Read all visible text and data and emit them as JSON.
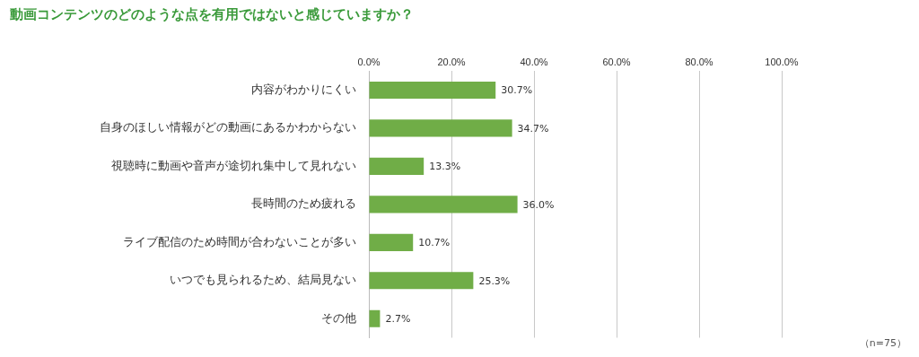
{
  "chart_data": {
    "type": "bar",
    "orientation": "horizontal",
    "title": "動画コンテンツのどのような点を有用ではないと感じていますか？",
    "categories": [
      "内容がわかりにくい",
      "自身のほしい情報がどの動画にあるかわからない",
      "視聴時に動画や音声が途切れ集中して見れない",
      "長時間のため疲れる",
      "ライブ配信のため時間が合わないことが多い",
      "いつでも見られるため、結局見ない",
      "その他"
    ],
    "values": [
      30.7,
      34.7,
      13.3,
      36.0,
      10.7,
      25.3,
      2.7
    ],
    "value_labels": [
      "30.7%",
      "34.7%",
      "13.3%",
      "36.0%",
      "10.7%",
      "25.3%",
      "2.7%"
    ],
    "color": "#70ad47",
    "xlim": [
      0,
      100
    ],
    "xticks": [
      {
        "value": 0,
        "label": "0.0%"
      },
      {
        "value": 20,
        "label": "20.0%"
      },
      {
        "value": 40,
        "label": "40.0%"
      },
      {
        "value": 60,
        "label": "60.0%"
      },
      {
        "value": 80,
        "label": "80.0%"
      },
      {
        "value": 100,
        "label": "100.0%"
      }
    ],
    "grid": "x",
    "annotations": [
      "（n=75）"
    ]
  }
}
